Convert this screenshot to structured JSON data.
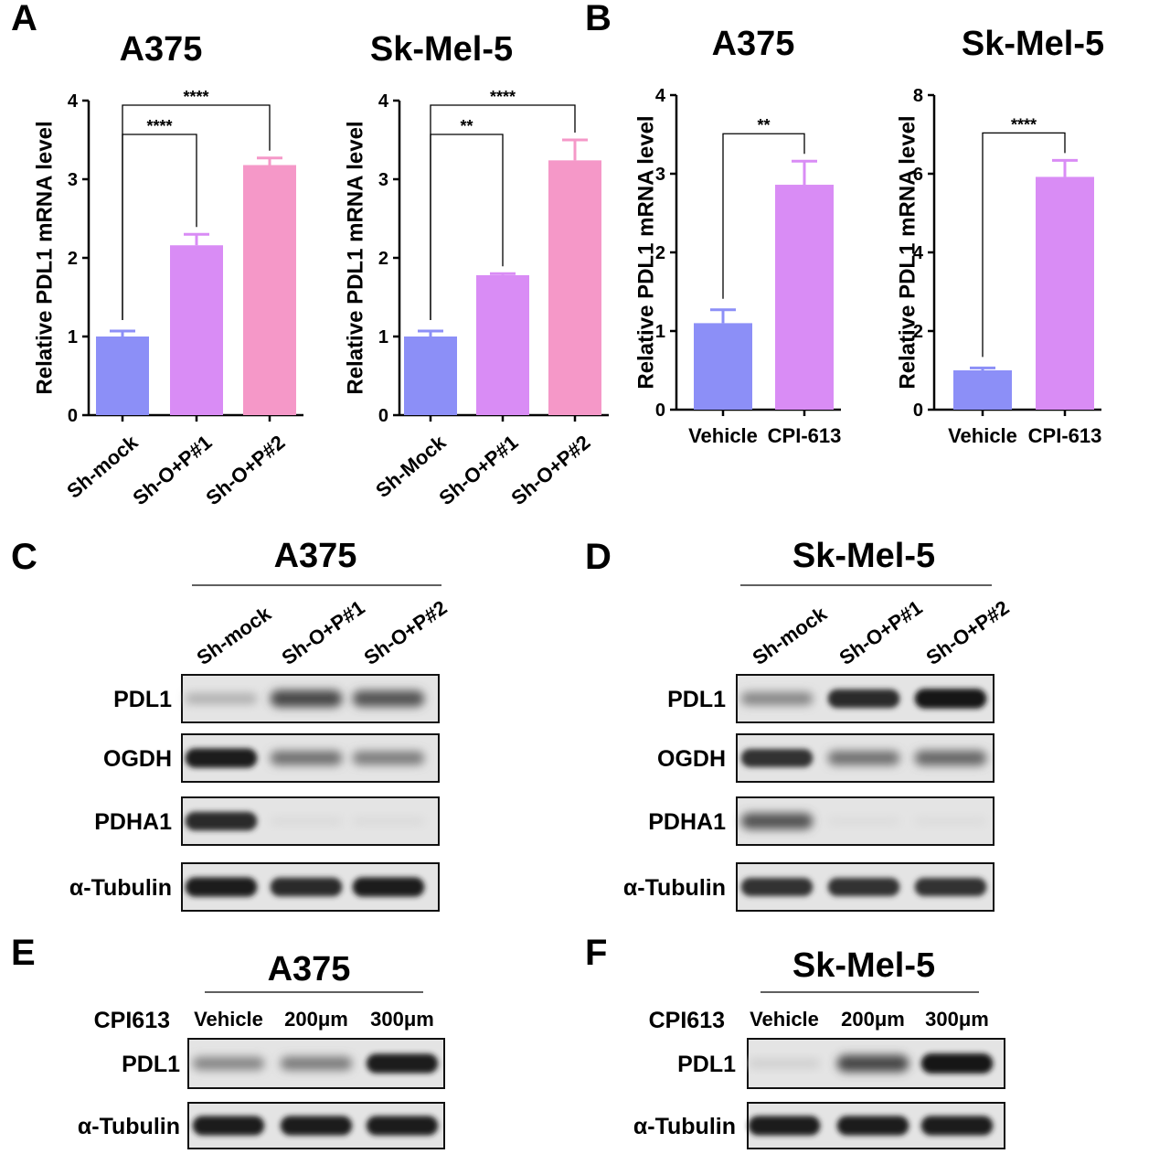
{
  "chart_data": [
    {
      "type": "bar",
      "panel": "A",
      "title": "A375",
      "ylabel": "Relative PDL1 mRNA level",
      "ylim": [
        0,
        4
      ],
      "yticks": [
        "0",
        "1",
        "2",
        "3",
        "4"
      ],
      "categories": [
        "Sh-mock",
        "Sh-O+P#1",
        "Sh-O+P#2"
      ],
      "values": [
        1.0,
        2.16,
        3.18
      ],
      "errors": [
        0.07,
        0.14,
        0.09
      ],
      "colors": [
        "#8c8ff7",
        "#d98cf5",
        "#f598c8"
      ],
      "significance": [
        {
          "from": 0,
          "to": 1,
          "label": "****"
        },
        {
          "from": 0,
          "to": 2,
          "label": "****"
        }
      ]
    },
    {
      "type": "bar",
      "panel": "",
      "title": "Sk-Mel-5",
      "ylabel": "Relative PDL1 mRNA level",
      "ylim": [
        0,
        4
      ],
      "yticks": [
        "0",
        "1",
        "2",
        "3",
        "4"
      ],
      "categories": [
        "Sh-Mock",
        "Sh-O+P#1",
        "Sh-O+P#2"
      ],
      "values": [
        1.0,
        1.78,
        3.24
      ],
      "errors": [
        0.07,
        0.02,
        0.26
      ],
      "colors": [
        "#8c8ff7",
        "#d98cf5",
        "#f598c8"
      ],
      "significance": [
        {
          "from": 0,
          "to": 1,
          "label": "**"
        },
        {
          "from": 0,
          "to": 2,
          "label": "****"
        }
      ]
    },
    {
      "type": "bar",
      "panel": "B",
      "title": "A375",
      "ylabel": "Relative PDL1 mRNA level",
      "ylim": [
        0,
        4
      ],
      "yticks": [
        "0",
        "1",
        "2",
        "3",
        "4"
      ],
      "categories": [
        "Vehicle",
        "CPI-613"
      ],
      "values": [
        1.1,
        2.86
      ],
      "errors": [
        0.17,
        0.3
      ],
      "colors": [
        "#8c8ff7",
        "#d98cf5"
      ],
      "significance": [
        {
          "from": 0,
          "to": 1,
          "label": "**"
        }
      ]
    },
    {
      "type": "bar",
      "panel": "",
      "title": "Sk-Mel-5",
      "ylabel": "Relative PDL1 mRNA level",
      "ylim": [
        0,
        8
      ],
      "yticks": [
        "0",
        "2",
        "4",
        "6",
        "8"
      ],
      "categories": [
        "Vehicle",
        "CPI-613"
      ],
      "values": [
        1.0,
        5.92
      ],
      "errors": [
        0.06,
        0.42
      ],
      "colors": [
        "#8c8ff7",
        "#d98cf5"
      ],
      "significance": [
        {
          "from": 0,
          "to": 1,
          "label": "****"
        }
      ]
    }
  ],
  "blots": [
    {
      "panel": "C",
      "title": "A375",
      "lanes": [
        "Sh-mock",
        "Sh-O+P#1",
        "Sh-O+P#2"
      ],
      "rows": [
        {
          "label": "PDL1",
          "intensity": [
            0.25,
            0.75,
            0.7
          ]
        },
        {
          "label": "OGDH",
          "intensity": [
            0.95,
            0.55,
            0.5
          ]
        },
        {
          "label": "PDHA1",
          "intensity": [
            0.9,
            0.04,
            0.04
          ]
        },
        {
          "label": "α-Tubulin",
          "intensity": [
            0.95,
            0.9,
            0.95
          ]
        }
      ]
    },
    {
      "panel": "D",
      "title": "Sk-Mel-5",
      "lanes": [
        "Sh-mock",
        "Sh-O+P#1",
        "Sh-O+P#2"
      ],
      "rows": [
        {
          "label": "PDL1",
          "intensity": [
            0.45,
            0.9,
            0.98
          ]
        },
        {
          "label": "OGDH",
          "intensity": [
            0.85,
            0.55,
            0.6
          ]
        },
        {
          "label": "PDHA1",
          "intensity": [
            0.7,
            0.03,
            0.03
          ]
        },
        {
          "label": "α-Tubulin",
          "intensity": [
            0.85,
            0.85,
            0.85
          ]
        }
      ]
    },
    {
      "panel": "E",
      "title": "A375",
      "treatment": "CPI613",
      "lanes": [
        "Vehicle",
        "200μm",
        "300μm"
      ],
      "rows": [
        {
          "label": "PDL1",
          "intensity": [
            0.45,
            0.5,
            0.95
          ]
        },
        {
          "label": "α-Tubulin",
          "intensity": [
            0.95,
            0.95,
            0.95
          ]
        }
      ]
    },
    {
      "panel": "F",
      "title": "Sk-Mel-5",
      "treatment": "CPI613",
      "lanes": [
        "Vehicle",
        "200μm",
        "300μm"
      ],
      "rows": [
        {
          "label": "PDL1",
          "intensity": [
            0.1,
            0.75,
            1.0
          ]
        },
        {
          "label": "α-Tubulin",
          "intensity": [
            0.95,
            0.95,
            0.95
          ]
        }
      ]
    }
  ]
}
